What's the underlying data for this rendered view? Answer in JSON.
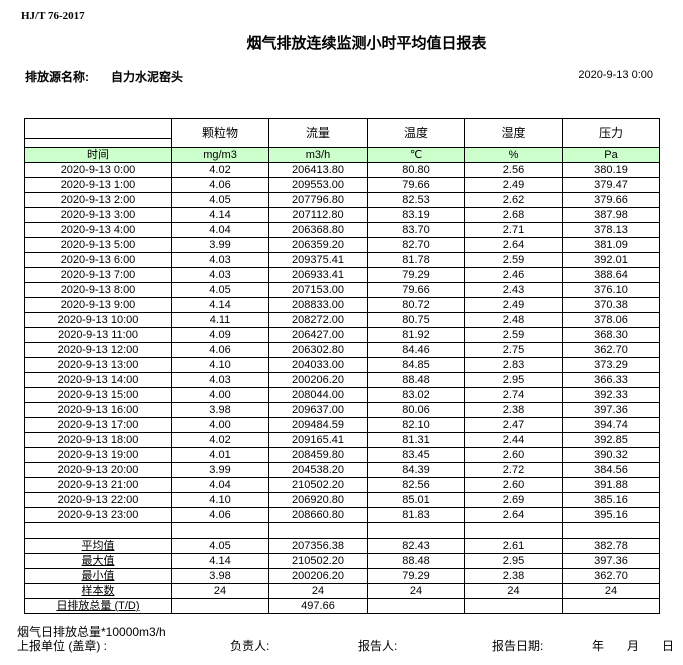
{
  "header": {
    "standard": "HJ/T  76-2017",
    "title": "烟气排放连续监测小时平均值日报表",
    "source_label": "排放源名称:",
    "source_name": "自力水泥窑头",
    "report_datetime": "2020-9-13 0:00"
  },
  "table": {
    "columns": [
      "颗粒物",
      "流量",
      "温度",
      "湿度",
      "压力"
    ],
    "time_label": "时间",
    "units": [
      "mg/m3",
      "m3/h",
      "℃",
      "%",
      "Pa"
    ],
    "rows": [
      [
        "2020-9-13 0:00",
        "4.02",
        "206413.80",
        "80.80",
        "2.56",
        "380.19"
      ],
      [
        "2020-9-13 1:00",
        "4.06",
        "209553.00",
        "79.66",
        "2.49",
        "379.47"
      ],
      [
        "2020-9-13 2:00",
        "4.05",
        "207796.80",
        "82.53",
        "2.62",
        "379.66"
      ],
      [
        "2020-9-13 3:00",
        "4.14",
        "207112.80",
        "83.19",
        "2.68",
        "387.98"
      ],
      [
        "2020-9-13 4:00",
        "4.04",
        "206368.80",
        "83.70",
        "2.71",
        "378.13"
      ],
      [
        "2020-9-13 5:00",
        "3.99",
        "206359.20",
        "82.70",
        "2.64",
        "381.09"
      ],
      [
        "2020-9-13 6:00",
        "4.03",
        "209375.41",
        "81.78",
        "2.59",
        "392.01"
      ],
      [
        "2020-9-13 7:00",
        "4.03",
        "206933.41",
        "79.29",
        "2.46",
        "388.64"
      ],
      [
        "2020-9-13 8:00",
        "4.05",
        "207153.00",
        "79.66",
        "2.43",
        "376.10"
      ],
      [
        "2020-9-13 9:00",
        "4.14",
        "208833.00",
        "80.72",
        "2.49",
        "370.38"
      ],
      [
        "2020-9-13 10:00",
        "4.11",
        "208272.00",
        "80.75",
        "2.48",
        "378.06"
      ],
      [
        "2020-9-13 11:00",
        "4.09",
        "206427.00",
        "81.92",
        "2.59",
        "368.30"
      ],
      [
        "2020-9-13 12:00",
        "4.06",
        "206302.80",
        "84.46",
        "2.75",
        "362.70"
      ],
      [
        "2020-9-13 13:00",
        "4.10",
        "204033.00",
        "84.85",
        "2.83",
        "373.29"
      ],
      [
        "2020-9-13 14:00",
        "4.03",
        "200206.20",
        "88.48",
        "2.95",
        "366.33"
      ],
      [
        "2020-9-13 15:00",
        "4.00",
        "208044.00",
        "83.02",
        "2.74",
        "392.33"
      ],
      [
        "2020-9-13 16:00",
        "3.98",
        "209637.00",
        "80.06",
        "2.38",
        "397.36"
      ],
      [
        "2020-9-13 17:00",
        "4.00",
        "209484.59",
        "82.10",
        "2.47",
        "394.74"
      ],
      [
        "2020-9-13 18:00",
        "4.02",
        "209165.41",
        "81.31",
        "2.44",
        "392.85"
      ],
      [
        "2020-9-13 19:00",
        "4.01",
        "208459.80",
        "83.45",
        "2.60",
        "390.32"
      ],
      [
        "2020-9-13 20:00",
        "3.99",
        "204538.20",
        "84.39",
        "2.72",
        "384.56"
      ],
      [
        "2020-9-13 21:00",
        "4.04",
        "210502.20",
        "82.56",
        "2.60",
        "391.88"
      ],
      [
        "2020-9-13 22:00",
        "4.10",
        "206920.80",
        "85.01",
        "2.69",
        "385.16"
      ],
      [
        "2020-9-13 23:00",
        "4.06",
        "208660.80",
        "81.83",
        "2.64",
        "395.16"
      ]
    ],
    "stats": [
      [
        "平均值",
        "4.05",
        "207356.38",
        "82.43",
        "2.61",
        "382.78"
      ],
      [
        "最大值",
        "4.14",
        "210502.20",
        "88.48",
        "2.95",
        "397.36"
      ],
      [
        "最小值",
        "3.98",
        "200206.20",
        "79.29",
        "2.38",
        "362.70"
      ],
      [
        "样本数",
        "24",
        "24",
        "24",
        "24",
        "24"
      ],
      [
        "日排放总量 (T/D)",
        "",
        "497.66",
        "",
        "",
        ""
      ]
    ]
  },
  "footer": {
    "note": "烟气日排放总量*10000m3/h",
    "unit_label": "上报单位 (盖章) :",
    "responsible_label": "负责人:",
    "reporter_label": "报告人:",
    "date_label": "报告日期:",
    "year": "年",
    "month": "月",
    "day": "日"
  }
}
